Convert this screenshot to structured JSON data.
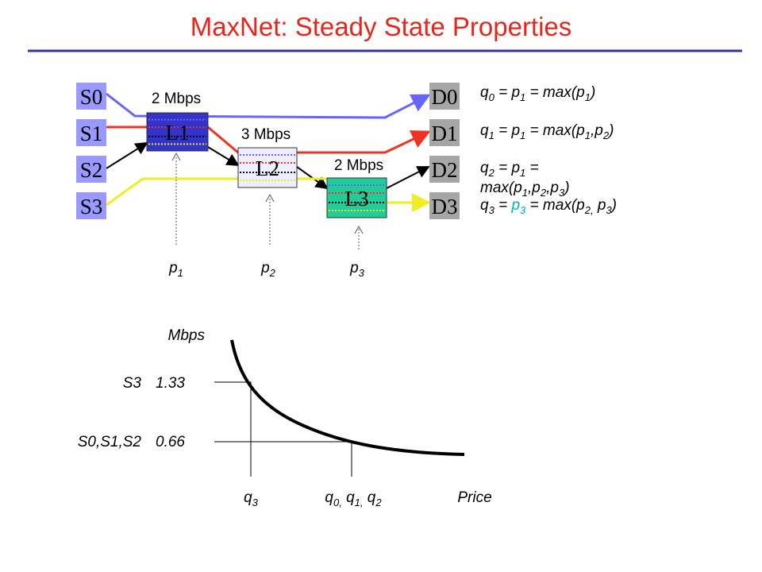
{
  "title": "MaxNet: Steady State Properties",
  "sources": [
    "S0",
    "S1",
    "S2",
    "S3"
  ],
  "destinations": [
    "D0",
    "D1",
    "D2",
    "D3"
  ],
  "links": [
    {
      "label": "L1",
      "capacity": "2 Mbps"
    },
    {
      "label": "L2",
      "capacity": "3 Mbps"
    },
    {
      "label": "L3",
      "capacity": "2 Mbps"
    }
  ],
  "prices": [
    [
      {
        "text": "p"
      },
      {
        "text": "1",
        "sub": true
      }
    ],
    [
      {
        "text": "p"
      },
      {
        "text": "2",
        "sub": true
      }
    ],
    [
      {
        "text": "p"
      },
      {
        "text": "3",
        "sub": true
      }
    ]
  ],
  "equations": [
    [
      {
        "text": "q"
      },
      {
        "text": "0",
        "sub": true
      },
      {
        "text": " = p"
      },
      {
        "text": "1",
        "sub": true
      },
      {
        "text": " = max(p"
      },
      {
        "text": "1",
        "sub": true
      },
      {
        "text": ")"
      }
    ],
    [
      {
        "text": "q"
      },
      {
        "text": "1",
        "sub": true
      },
      {
        "text": " = p"
      },
      {
        "text": "1",
        "sub": true
      },
      {
        "text": " = max(p"
      },
      {
        "text": "1",
        "sub": true
      },
      {
        "text": ",p"
      },
      {
        "text": "2",
        "sub": true
      },
      {
        "text": ")"
      }
    ],
    [
      {
        "text": "q"
      },
      {
        "text": "2",
        "sub": true
      },
      {
        "text": " = p"
      },
      {
        "text": "1",
        "sub": true
      },
      {
        "text": "  ="
      }
    ],
    [
      {
        "text": "max(p"
      },
      {
        "text": "1",
        "sub": true
      },
      {
        "text": ",p"
      },
      {
        "text": "2",
        "sub": true
      },
      {
        "text": ",p"
      },
      {
        "text": "3",
        "sub": true
      },
      {
        "text": ")"
      }
    ],
    [
      {
        "text": "q"
      },
      {
        "text": "3",
        "sub": true
      },
      {
        "text": " = "
      },
      {
        "text": "p",
        "color": "#00b0b0"
      },
      {
        "text": "3",
        "sub": true,
        "color": "#00b0b0"
      },
      {
        "text": " = max(p"
      },
      {
        "text": "2,",
        "sub": true
      },
      {
        "text": " p"
      },
      {
        "text": "3",
        "sub": true
      },
      {
        "text": ")"
      }
    ]
  ],
  "graph": {
    "y_label": "Mbps",
    "x_label": "Price",
    "levels": [
      {
        "flows": "S3",
        "rate": "1.33"
      },
      {
        "flows": "S0,S1,S2",
        "rate": "0.66"
      }
    ],
    "x_marks": [
      [
        {
          "text": "q"
        },
        {
          "text": "3",
          "sub": true
        }
      ],
      [
        {
          "text": "q"
        },
        {
          "text": "0,",
          "sub": true
        },
        {
          "text": " q"
        },
        {
          "text": "1,",
          "sub": true
        },
        {
          "text": " q"
        },
        {
          "text": "2",
          "sub": true
        }
      ]
    ]
  }
}
